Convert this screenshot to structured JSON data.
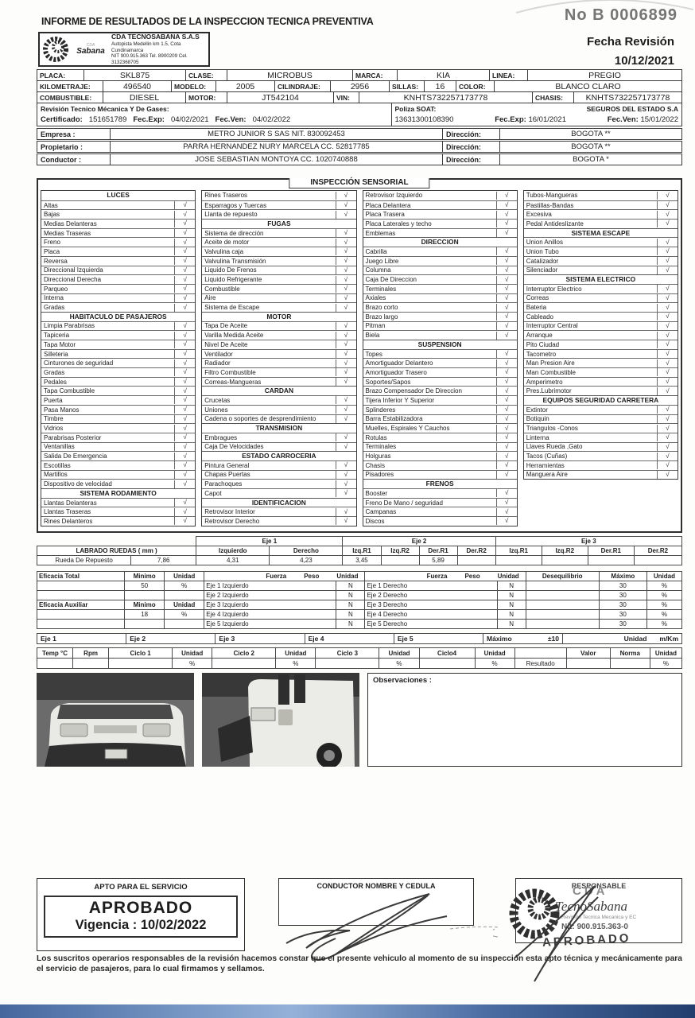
{
  "page": {
    "title": "INFORME DE RESULTADOS DE LA INSPECCION TECNICA PREVENTIVA",
    "serial": "No B 0006899",
    "fecha_revision_label": "Fecha Revisión",
    "fecha_revision": "10/12/2021"
  },
  "company_box": {
    "logo_top": "CDA",
    "logo_text": "Sabana",
    "name": "CDA TECNOSABANA S.A.S",
    "address": "Autopista Medellin km 1.5, Cota Cundinamarca",
    "nit_line": "NIT 900.915.363 Tel. 8900209 Cel. 3132368705"
  },
  "vehicle": {
    "rows": [
      [
        {
          "l": "PLACA:",
          "v": "SKL875"
        },
        {
          "l": "CLASE:",
          "v": "MICROBUS"
        },
        {
          "l": "MARCA:",
          "v": "KIA"
        },
        {
          "l": "LINEA:",
          "v": "PREGIO"
        }
      ],
      [
        {
          "l": "KILOMETRAJE:",
          "v": "496540"
        },
        {
          "l": "MODELO:",
          "v": "2005"
        },
        {
          "l": "CILINDRAJE:",
          "v": "2956"
        },
        {
          "l": "SILLAS:",
          "v": "16"
        },
        {
          "l": "COLOR:",
          "v": "BLANCO CLARO"
        }
      ],
      [
        {
          "l": "COMBUSTIBLE:",
          "v": "DIESEL"
        },
        {
          "l": "MOTOR:",
          "v": "JT542104"
        },
        {
          "l": "VIN:",
          "v": "KNHTS732257173778"
        },
        {
          "l": "CHASIS:",
          "v": "KNHTS732257173778"
        }
      ]
    ]
  },
  "revision": {
    "left_title": "Revisión Tecnico Mécanica Y De Gases:",
    "certificado_label": "Certificado:",
    "certificado": "151651789",
    "fec_exp_label": "Fec.Exp:",
    "fec_exp": "04/02/2021",
    "fec_ven_label": "Fec.Ven:",
    "fec_ven": "04/02/2022",
    "soat_label": "Poliza SOAT:",
    "soat_aseguradora": "SEGUROS DEL ESTADO S.A",
    "soat_numero": "13631300108390",
    "soat_fec_exp_label": "Fec.Exp:",
    "soat_fec_exp": "16/01/2021",
    "soat_fec_ven_label": "Fec.Ven:",
    "soat_fec_ven": "15/01/2022"
  },
  "parties": [
    {
      "label": "Empresa :",
      "value": "METRO JUNIOR S SAS NIT. 830092453",
      "dir_label": "Dirección:",
      "dir": "BOGOTA **"
    },
    {
      "label": "Propietario :",
      "value": "PARRA HERNANDEZ NURY MARCELA CC. 52817785",
      "dir_label": "Dirección:",
      "dir": "BOGOTA **"
    },
    {
      "label": "Conductor :",
      "value": "JOSE SEBASTIAN MONTOYA  CC. 1020740888",
      "dir_label": "Dirección:",
      "dir": "BOGOTA *"
    }
  ],
  "inspeccion": {
    "title": "INSPECCIÓN SENSORIAL",
    "check": "√",
    "columns": [
      {
        "sections": [
          {
            "header": "LUCES",
            "items": [
              "Altas",
              "Bajas",
              "Medias Delanteras",
              "Medias Traseras",
              "Freno",
              "Placa",
              "Reversa",
              "Direccional Izquierda",
              "Direccional Derecha",
              "Parqueo",
              "Interna",
              "Gradas"
            ]
          },
          {
            "header": "HABITACULO DE PASAJEROS",
            "items": [
              "Limpia Parabrisas",
              "Tapiceria",
              "Tapa Motor",
              "Silleteria",
              "Cinturones de seguridad",
              "Gradas",
              "Pedales",
              "Tapa Combustible",
              "Puerta",
              "Pasa Manos",
              "Timbre",
              "Vidrios",
              "Parabrisas Posterior",
              "Ventanillas",
              "Salida De Emergencia",
              "Escotillas",
              "Martillos",
              "Dispositivo de velocidad"
            ]
          },
          {
            "header": "SISTEMA RODAMIENTO",
            "items": [
              "Llantas Delanteras",
              "Llantas Traseras",
              "Rines Delanteros"
            ]
          }
        ]
      },
      {
        "sections": [
          {
            "header": "",
            "items": [
              "Rines Traseros",
              "Esparragos y Tuercas",
              "Llanta de repuesto"
            ]
          },
          {
            "header": "FUGAS",
            "items": [
              "Sistema de dirección",
              "Aceite de motor",
              "Valvulina caja",
              "Valvulina Transmisión",
              "Liquido De Frenos",
              "Liquido Refrigerante",
              "Combustible",
              "Aire",
              "Sistema de Escape"
            ]
          },
          {
            "header": "MOTOR",
            "items": [
              "Tapa De Aceite",
              "Varilla Medida Aceite",
              "Nivel De Aceite",
              "Ventilador",
              "Radiador",
              "Filtro Combustible",
              "Correas-Mangueras"
            ]
          },
          {
            "header": "CARDAN",
            "items": [
              "Crucetas",
              "Uniones",
              "Cadena o soportes de desprendimiento"
            ]
          },
          {
            "header": "TRANSMISION",
            "items": [
              "Embragues",
              "Caja De Velocidades"
            ]
          },
          {
            "header": "ESTADO CARROCERIA",
            "items": [
              "Pintura General",
              "Chapas Puertas",
              "Parachoques",
              "Capot"
            ]
          },
          {
            "header": "IDENTIFICACION",
            "items": [
              "Retrovisor Interior",
              "Retrovisor Derecho"
            ]
          }
        ]
      },
      {
        "sections": [
          {
            "header": "",
            "items": [
              "Retrovisor Izquierdo",
              "Placa Delantera",
              "Placa Trasera",
              "Placa Laterales y techo",
              "Emblemas"
            ]
          },
          {
            "header": "DIRECCION",
            "items": [
              "Cabrilla",
              "Juego Libre",
              "Columna",
              "Caja De Direccion",
              "Terminales",
              "Axiales",
              "Brazo corto",
              "Brazo largo",
              "Pitman",
              "Biela"
            ]
          },
          {
            "header": "SUSPENSION",
            "items": [
              "Topes",
              "Amortiguador Delantero",
              "Amortiguador Trasero",
              "Soportes/Sapos",
              "Brazo Compensador De Direccion",
              "Tijera Inferior Y Superior",
              "Splinderes",
              "Barra Estabilizadora",
              "Muelles, Espirales Y Cauchos",
              "Rotulas",
              "Terminales",
              "Holguras",
              "Chasis",
              "Pisadores"
            ]
          },
          {
            "header": "FRENOS",
            "items": [
              "Booster",
              "Freno De Mano / seguridad",
              "Campanas",
              "Discos"
            ]
          }
        ]
      },
      {
        "sections": [
          {
            "header": "",
            "items": [
              "Tubos-Mangueras",
              "Pastillas-Bandas",
              "Excesiva",
              "Pedal Antideslizante"
            ]
          },
          {
            "header": "SISTEMA ESCAPE",
            "items": [
              "Union Anillos",
              "Union Tubo",
              "Catalizador",
              "Silenciador"
            ]
          },
          {
            "header": "SISTEMA ELECTRICO",
            "items": [
              "Interruptor Electrico",
              "Correas",
              "Bateria",
              "Cableado",
              "Interruptor Central",
              "Arranque",
              "Pito Ciudad",
              "Tacometro",
              "Man Presion Aire",
              "Man Combustible",
              "Amperimetro",
              "Pres.Lubrimotor"
            ]
          },
          {
            "header": "EQUIPOS SEGURIDAD CARRETERA",
            "items": [
              "Extintor",
              "Botiquin",
              "Triangulos -Conos",
              "Linterna",
              "Llaves Rueda ,Gato",
              "Tacos (Cuñas)",
              "Herramientas",
              "Manguera Aire"
            ]
          }
        ]
      }
    ]
  },
  "labrado": {
    "eje_headers": [
      "Eje 1",
      "Eje 2",
      "Eje 3"
    ],
    "col_headers": [
      "Izquierdo",
      "Derecho",
      "Izq.R1",
      "Izq.R2",
      "Der.R1",
      "Der.R2",
      "Izq.R1",
      "Izq.R2",
      "Der.R1",
      "Der.R2"
    ],
    "row_label": "LABRADO RUEDAS ( mm )",
    "spare_label": "Rueda De Repuesto",
    "spare_value": "7,86",
    "values": [
      "4,31",
      "4,23",
      "3,45",
      "",
      "5,89",
      "",
      "",
      "",
      "",
      ""
    ]
  },
  "eficacia": {
    "total_label": "Eficacia Total",
    "aux_label": "Eficacia Auxiliar",
    "minimo_label": "Minimo",
    "unidad_label": "Unidad",
    "total_min": "50",
    "total_unit": "%",
    "aux_min": "18",
    "aux_unit": "%",
    "fuerza_label": "Fuerza",
    "peso_label": "Peso",
    "deseq_label": "Desequilibrio",
    "max_label": "Máximo",
    "rows": [
      {
        "izq": "Eje 1 Izquierdo",
        "der": "Eje 1 Derecho",
        "unit": "N",
        "deseq": "30",
        "dunit": "%"
      },
      {
        "izq": "Eje 2 Izquierdo",
        "der": "Eje 2 Derecho",
        "unit": "N",
        "deseq": "30",
        "dunit": "%"
      },
      {
        "izq": "Eje 3 Izquierdo",
        "der": "Eje 3 Derecho",
        "unit": "N",
        "deseq": "30",
        "dunit": "%"
      },
      {
        "izq": "Eje 4 Izquierdo",
        "der": "Eje 4 Derecho",
        "unit": "N",
        "deseq": "30",
        "dunit": "%"
      },
      {
        "izq": "Eje 5 Izquierdo",
        "der": "Eje 5 Derecho",
        "unit": "N",
        "deseq": "30",
        "dunit": "%"
      }
    ]
  },
  "ejes": {
    "labels": [
      "Eje 1",
      "Eje 2",
      "Eje 3",
      "Eje 4",
      "Eje 5"
    ],
    "max_label": "Máximo",
    "max_value": "±10",
    "unidad_label": "Unidad",
    "unidad_value": "m/Km"
  },
  "ciclos": {
    "headers": [
      "Temp °C",
      "Rpm",
      "Ciclo 1",
      "Unidad",
      "Ciclo 2",
      "Unidad",
      "Ciclo 3",
      "Unidad",
      "Ciclo4",
      "Unidad",
      "",
      "Valor",
      "Norma",
      "Unidad"
    ],
    "row2": [
      "",
      "",
      "",
      "%",
      "",
      "%",
      "",
      "%",
      "",
      "%",
      "Resultado",
      "",
      "",
      "%"
    ]
  },
  "observaciones_label": "Observaciones :",
  "apto": {
    "title": "APTO PARA EL SERVICIO",
    "result": "APROBADO",
    "vigencia": "Vigencia : 10/02/2022"
  },
  "conductor_box": {
    "title": "CONDUCTOR NOMBRE Y CEDULA"
  },
  "responsable_box": {
    "title": "RESPONSABLE",
    "stamp_cda": "CDA",
    "stamp_name": "TecnoSabana",
    "stamp_sub": "Revisión Tecnica Mecanica y EC",
    "stamp_nit": "Nit: 900.915.363-0",
    "stamp_result": "APROBADO"
  },
  "footer": "Los suscritos operarios  responsables de la revisión hacemos constar que el presente vehiculo al momento de su inspección esta apto técnica y mecánicamente para el servicio de pasajeros, para lo cual firmamos y sellamos."
}
